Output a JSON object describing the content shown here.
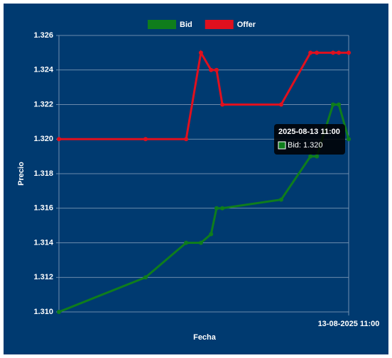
{
  "chart_data": {
    "type": "line",
    "x": [
      0,
      29.9,
      43.9,
      49.0,
      52.5,
      54.4,
      56.4,
      76.7,
      86.8,
      89.0,
      94.6,
      96.6,
      100
    ],
    "series": [
      {
        "name": "Bid",
        "color": "#0f7d1c",
        "values": [
          1.31,
          1.312,
          1.314,
          1.314,
          1.3145,
          1.316,
          1.316,
          1.3165,
          1.319,
          1.319,
          1.322,
          1.322,
          1.32
        ]
      },
      {
        "name": "Offer",
        "color": "#e0101e",
        "values": [
          1.32,
          1.32,
          1.32,
          1.325,
          1.324,
          1.324,
          1.322,
          1.322,
          1.325,
          1.325,
          1.325,
          1.325,
          1.325
        ]
      }
    ],
    "xlabel": "Fecha",
    "ylabel": "Precio",
    "xlim": [
      0,
      100
    ],
    "xticks": [
      {
        "value": 100,
        "label": "13-08-2025 11:00"
      }
    ],
    "ylim": [
      1.31,
      1.326
    ],
    "yticks": [
      {
        "value": 1.31,
        "label": "1.310"
      },
      1.312,
      1.314,
      1.316,
      1.318,
      {
        "value": 1.32,
        "label": "1.320"
      },
      1.322,
      1.324,
      1.326
    ],
    "grid": true,
    "legend": "top",
    "tooltip": {
      "title": "2025-08-13 11:00",
      "label": "Bid: 1.320"
    }
  }
}
